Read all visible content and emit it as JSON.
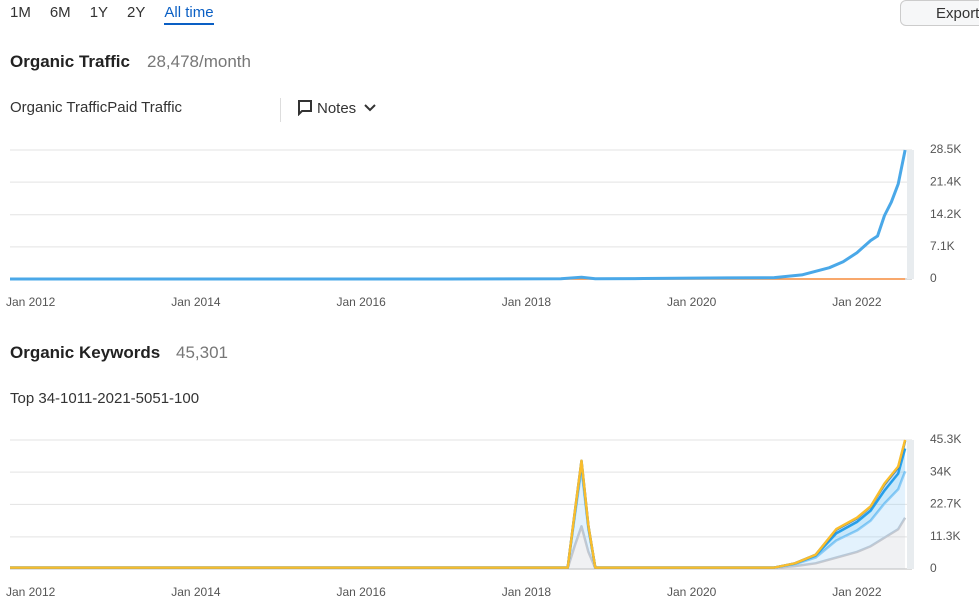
{
  "toolbar": {
    "ranges": [
      "1M",
      "6M",
      "1Y",
      "2Y",
      "All time"
    ],
    "export": "Export"
  },
  "chart_data": [
    {
      "type": "line",
      "title": "Organic Traffic",
      "subtitle": "28,478/month",
      "notes": "Notes",
      "x": [
        "2011-10",
        "2013-01",
        "2015-01",
        "2017-01",
        "2018-06",
        "2018-09",
        "2018-11",
        "2019-06",
        "2020-01",
        "2020-06",
        "2021-01",
        "2021-03",
        "2021-05",
        "2021-07",
        "2021-09",
        "2021-11",
        "2022-01",
        "2022-03",
        "2022-04",
        "2022-05",
        "2022-06",
        "2022-07",
        "2022-08"
      ],
      "series": [
        {
          "name": "Organic Traffic",
          "color": "#4aa8e8",
          "values": [
            0,
            0,
            0,
            0,
            50,
            400,
            50,
            100,
            200,
            250,
            300,
            600,
            900,
            1700,
            2500,
            3800,
            5800,
            8500,
            9500,
            14000,
            17000,
            21000,
            28478
          ]
        },
        {
          "name": "Paid Traffic",
          "color": "#f58c3c",
          "values": [
            0,
            0,
            0,
            0,
            0,
            0,
            0,
            0,
            0,
            0,
            0,
            0,
            0,
            0,
            0,
            0,
            0,
            0,
            0,
            0,
            0,
            0,
            0
          ]
        }
      ],
      "xlim": [
        "2011-10",
        "2022-09"
      ],
      "xticks": [
        {
          "value": "2012-01",
          "label": "Jan 2012"
        },
        {
          "value": "2014-01",
          "label": "Jan 2014"
        },
        {
          "value": "2016-01",
          "label": "Jan 2016"
        },
        {
          "value": "2018-01",
          "label": "Jan 2018"
        },
        {
          "value": "2020-01",
          "label": "Jan 2020"
        },
        {
          "value": "2022-01",
          "label": "Jan 2022"
        }
      ],
      "ylim": [
        0,
        28500
      ],
      "yticks": [
        0,
        {
          "value": 7100,
          "label": "7.1K"
        },
        {
          "value": 14200,
          "label": "14.2K"
        },
        {
          "value": 21400,
          "label": "21.4K"
        },
        {
          "value": 28500,
          "label": "28.5K"
        }
      ],
      "grid": true
    },
    {
      "type": "area",
      "stacked": true,
      "title": "Organic Keywords",
      "subtitle": "45,301",
      "x": [
        "2011-10",
        "2013-01",
        "2015-01",
        "2017-01",
        "2018-07",
        "2018-08",
        "2018-09",
        "2018-10",
        "2018-11",
        "2019-06",
        "2020-06",
        "2021-01",
        "2021-04",
        "2021-07",
        "2021-10",
        "2022-01",
        "2022-03",
        "2022-05",
        "2022-07",
        "2022-08"
      ],
      "series": [
        {
          "name": "Top 3",
          "color": "#f9bd2d",
          "values": [
            0,
            0,
            0,
            0,
            0,
            0,
            0,
            0,
            0,
            0,
            0,
            0,
            0,
            0,
            200,
            200,
            100,
            300,
            300,
            300
          ]
        },
        {
          "name": "4-10",
          "color": "#1476d2",
          "values": [
            0,
            0,
            0,
            0,
            0,
            500,
            1000,
            400,
            0,
            0,
            0,
            0,
            100,
            300,
            1300,
            1300,
            1400,
            2200,
            2200,
            2700
          ]
        },
        {
          "name": "11-20",
          "color": "#2aa4ec",
          "values": [
            0,
            0,
            0,
            0,
            0,
            1000,
            2000,
            800,
            0,
            0,
            0,
            0,
            200,
            700,
            2500,
            3000,
            3500,
            4500,
            5500,
            8000
          ]
        },
        {
          "name": "21-50",
          "color": "#8fcdf6",
          "values": [
            200,
            200,
            200,
            200,
            200,
            10000,
            20000,
            8000,
            200,
            200,
            200,
            100,
            700,
            2000,
            6000,
            7500,
            9000,
            12000,
            14000,
            16301
          ]
        },
        {
          "name": "51-100",
          "color": "#c5c8cf",
          "values": [
            300,
            300,
            300,
            300,
            300,
            8000,
            15000,
            6000,
            300,
            300,
            300,
            400,
            1000,
            2000,
            4000,
            6000,
            8000,
            11000,
            14000,
            18000
          ]
        }
      ],
      "xlim": [
        "2011-10",
        "2022-09"
      ],
      "xticks": [
        {
          "value": "2012-01",
          "label": "Jan 2012"
        },
        {
          "value": "2014-01",
          "label": "Jan 2014"
        },
        {
          "value": "2016-01",
          "label": "Jan 2016"
        },
        {
          "value": "2018-01",
          "label": "Jan 2018"
        },
        {
          "value": "2020-01",
          "label": "Jan 2020"
        },
        {
          "value": "2022-01",
          "label": "Jan 2022"
        }
      ],
      "ylim": [
        0,
        45300
      ],
      "yticks": [
        0,
        {
          "value": 11300,
          "label": "11.3K"
        },
        {
          "value": 22700,
          "label": "22.7K"
        },
        {
          "value": 34000,
          "label": "34K"
        },
        {
          "value": 45300,
          "label": "45.3K"
        }
      ],
      "grid": true
    }
  ]
}
